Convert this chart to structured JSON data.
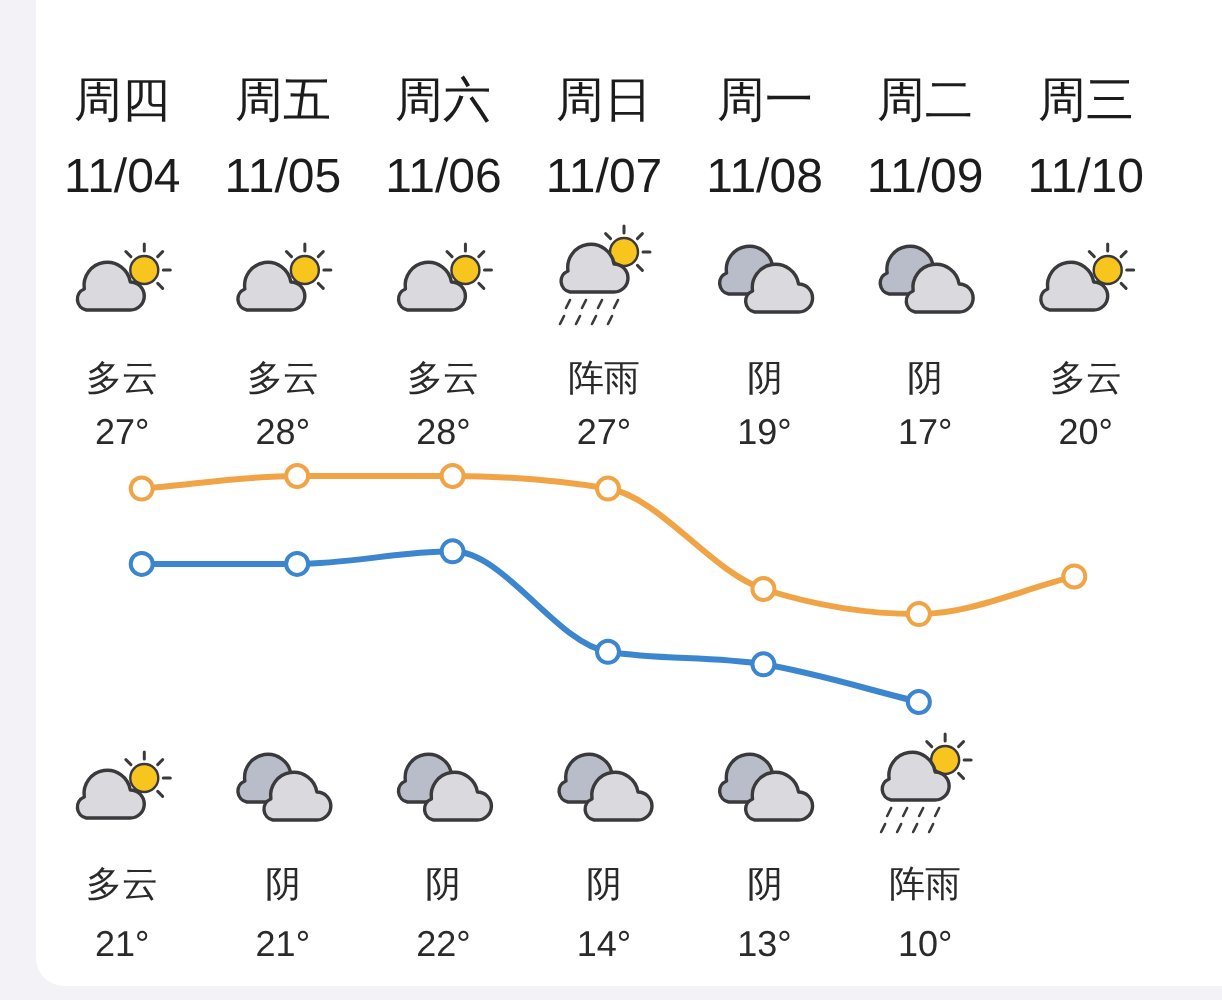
{
  "chart_data": {
    "type": "line",
    "categories": [
      "周四\n11/04",
      "周五\n11/05",
      "周六\n11/06",
      "周日\n11/07",
      "周一\n11/08",
      "周二\n11/09",
      "周三\n11/10"
    ],
    "series": [
      {
        "color": "#f0a445",
        "values": [
          27,
          28,
          28,
          27,
          19,
          17,
          20
        ],
        "value_labels": [
          "多云\n27°",
          "多云\n28°",
          "多云\n28°",
          "阵雨\n27°",
          "阴\n19°",
          "阴\n17°",
          "多云\n20°"
        ]
      },
      {
        "color": "#3b86cf",
        "values": [
          21,
          21,
          22,
          14,
          13,
          10,
          null
        ],
        "value_labels": [
          "多云\n21°",
          "阴\n21°",
          "阴\n22°",
          "阴\n14°",
          "阴\n13°",
          "阵雨\n10°",
          null
        ]
      }
    ],
    "marker": "circle",
    "line_style": "solid"
  }
}
